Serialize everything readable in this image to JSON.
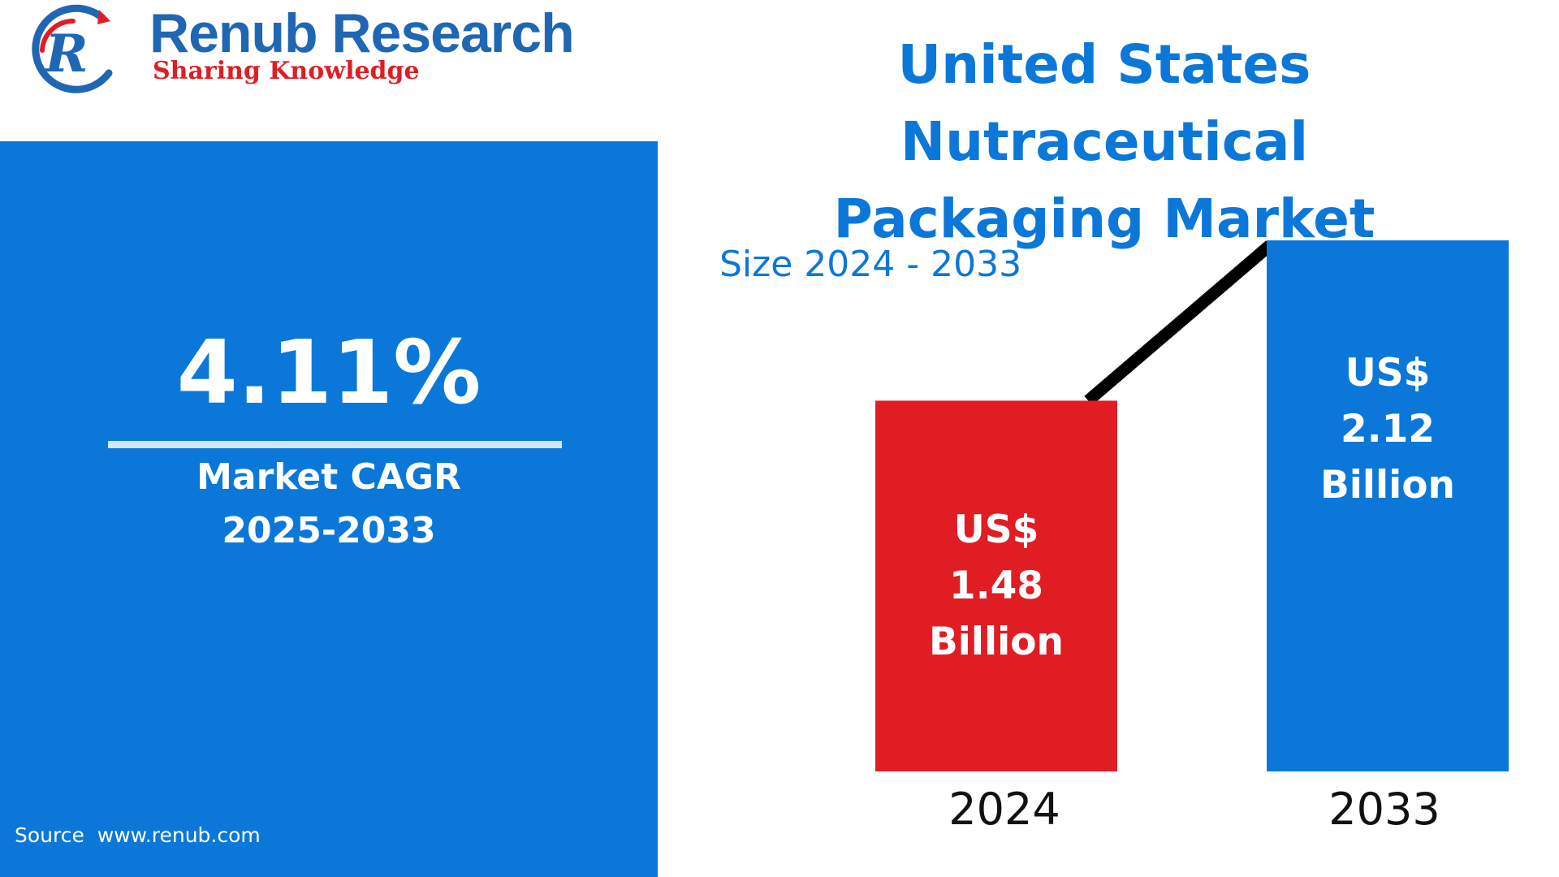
{
  "brand": {
    "name": "Renub Research",
    "tagline": "Sharing Knowledge",
    "logo_icon": "renub-r-swoosh-icon",
    "colors": {
      "blue": "#1f67b5",
      "red": "#e11d24"
    }
  },
  "left_panel": {
    "cagr_value": "4.11%",
    "cagr_label_line1": "Market CAGR",
    "cagr_label_line2": "2025-2033",
    "source": "Source  www.renub.com",
    "background": "#0b78d9"
  },
  "title_line1": "United States Nutraceutical",
  "title_line2": "Packaging Market",
  "subtitle": "Size 2024 - 2033",
  "chart_data": {
    "type": "bar",
    "categories": [
      "2024",
      "2033"
    ],
    "values": [
      1.48,
      2.12
    ],
    "unit": "US$ Billion",
    "ylim": [
      0,
      2.12
    ],
    "bar_labels": [
      [
        "US$",
        "1.48",
        "Billion"
      ],
      [
        "US$",
        "2.12",
        "Billion"
      ]
    ],
    "colors": [
      "#e11d24",
      "#0b78d9"
    ],
    "trend_line": true,
    "trend_line_color": "#000000",
    "grid": false,
    "axes_visible": false
  }
}
